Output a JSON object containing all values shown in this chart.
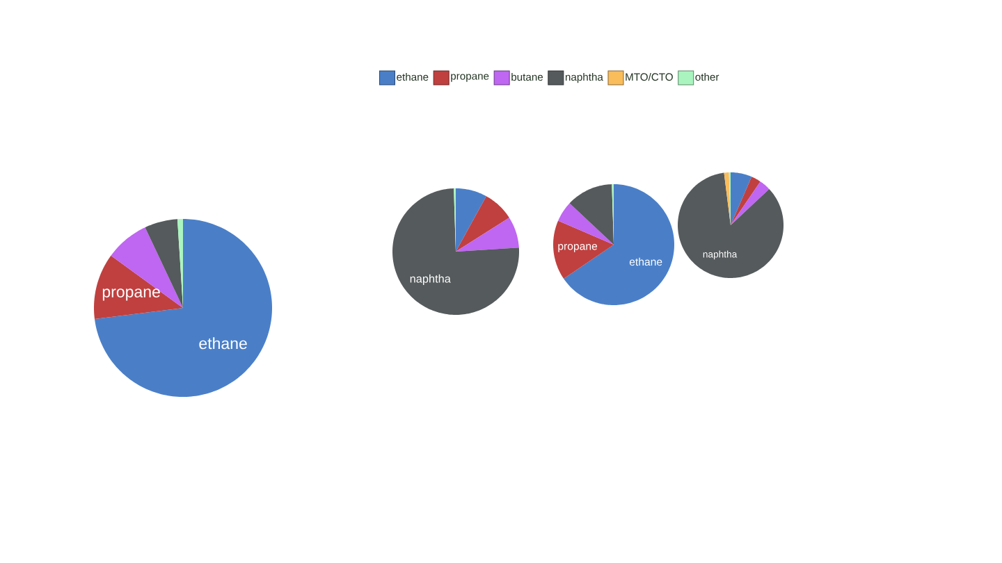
{
  "chart_data": [
    {
      "type": "pie",
      "categories": [
        "ethane",
        "propane",
        "butane",
        "naphtha",
        "MTO/CTO",
        "other"
      ],
      "values": [
        73,
        12,
        8,
        6,
        0,
        1
      ],
      "colors": [
        "#4a7fc8",
        "#c0403f",
        "#bf66f2",
        "#555a5c",
        "#f9bd5c",
        "#aaf5bf"
      ],
      "value_labels": [
        "ethane",
        "propane",
        null,
        null,
        null,
        null
      ],
      "legend": "top"
    },
    {
      "type": "pie",
      "categories": [
        null,
        null,
        null,
        "naphtha",
        null,
        null
      ],
      "values": [
        8,
        8,
        8,
        75.5,
        0,
        0.5
      ],
      "colors": [
        "#4a7fc8",
        "#c0403f",
        "#bf66f2",
        "#555a5c",
        "#f9bd5c",
        "#aaf5bf"
      ]
    },
    {
      "type": "pie",
      "categories": [
        "ethane",
        "propane",
        null,
        null,
        null,
        null
      ],
      "values": [
        65.5,
        16,
        5.5,
        12.5,
        0,
        0.5
      ],
      "colors": [
        "#4a7fc8",
        "#c0403f",
        "#bf66f2",
        "#555a5c",
        "#f9bd5c",
        "#aaf5bf"
      ]
    },
    {
      "type": "pie",
      "categories": [
        null,
        null,
        null,
        "naphtha",
        null,
        null
      ],
      "values": [
        6.5,
        3,
        3.5,
        85,
        1.5,
        0.5
      ],
      "colors": [
        "#4a7fc8",
        "#c0403f",
        "#bf66f2",
        "#555a5c",
        "#f9bd5c",
        "#aaf5bf"
      ]
    }
  ]
}
